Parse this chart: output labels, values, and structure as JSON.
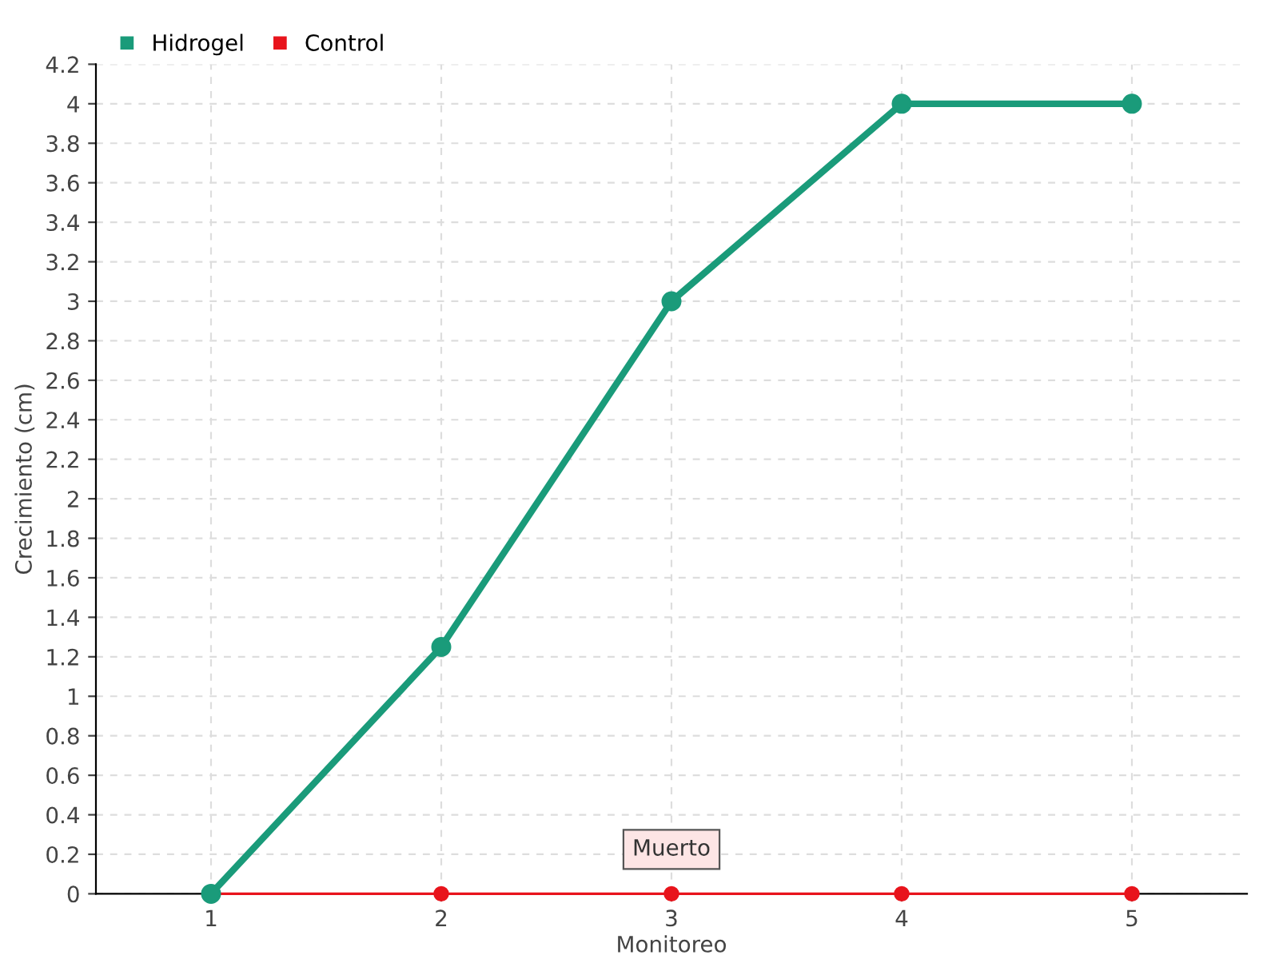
{
  "chart_data": {
    "type": "line",
    "xlabel": "Monitoreo",
    "ylabel": "Crecimiento (cm)",
    "categories": [
      "1",
      "2",
      "3",
      "4",
      "5"
    ],
    "series": [
      {
        "name": "Hidrogel",
        "color": "#1a9b7a",
        "values": [
          0,
          1.25,
          3,
          4,
          4
        ]
      },
      {
        "name": "Control",
        "color": "#e8141c",
        "values": [
          0,
          0,
          0,
          0,
          0
        ]
      }
    ],
    "ylim": [
      0,
      4.2
    ],
    "yticks": [
      0,
      0.2,
      0.4,
      0.6,
      0.8,
      1,
      1.2,
      1.4,
      1.6,
      1.8,
      2,
      2.2,
      2.4,
      2.6,
      2.8,
      3,
      3.2,
      3.4,
      3.6,
      3.8,
      4,
      4.2
    ],
    "annotations": [
      {
        "text": "Muerto",
        "x": "3",
        "y": 0
      }
    ],
    "grid": true,
    "legend": "top left",
    "marker": "circle",
    "line_style": "solid"
  }
}
